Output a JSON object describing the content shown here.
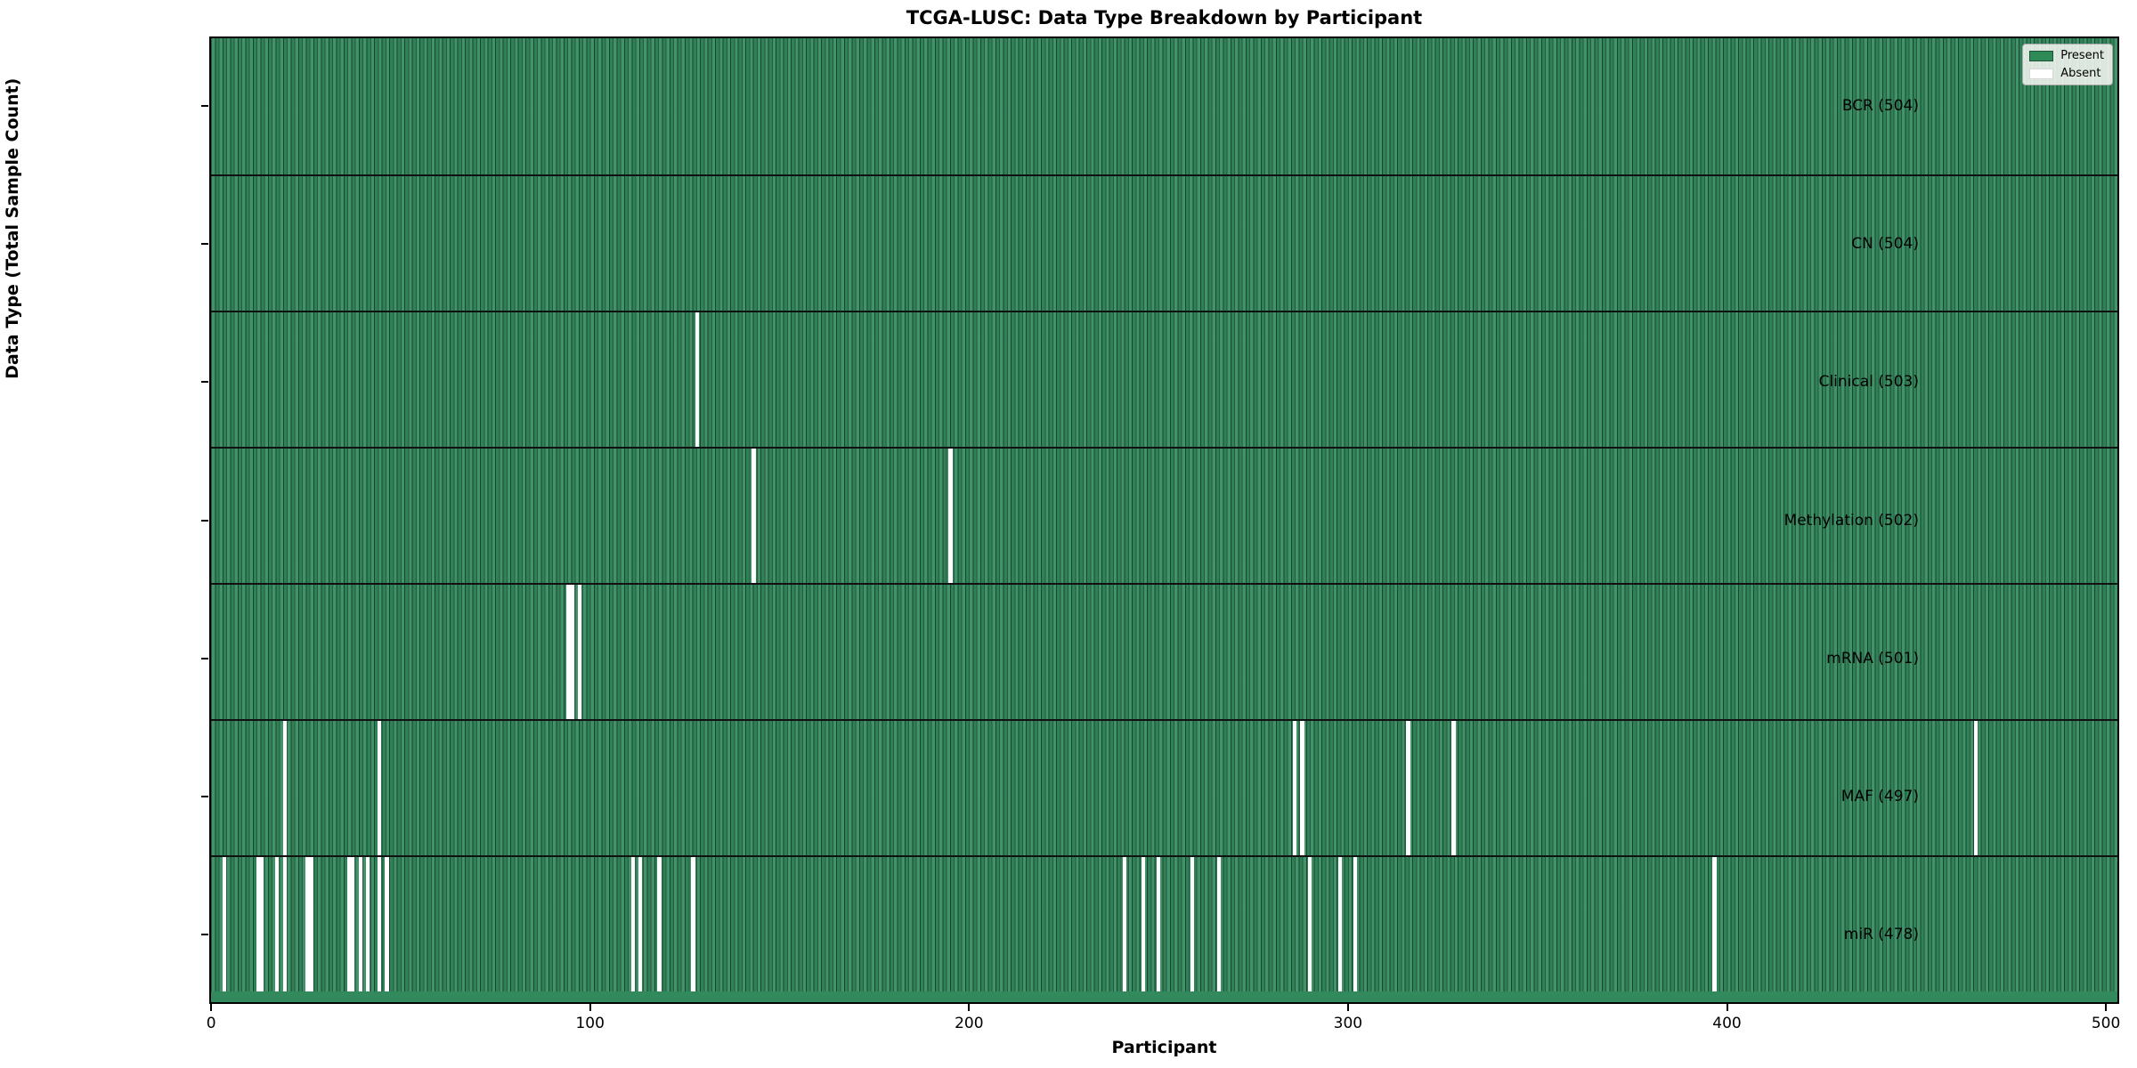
{
  "title": "TCGA-LUSC: Data Type Breakdown by Participant",
  "xlabel": "Participant",
  "ylabel": "Data Type (Total Sample Count)",
  "legend": {
    "present_label": "Present",
    "absent_label": "Absent"
  },
  "colors": {
    "present": "#2e8b57",
    "absent": "#ffffff",
    "bar_edge": "#143d26",
    "plot_border": "#000000"
  },
  "chart_data": {
    "type": "heatmap",
    "x_axis": {
      "label": "Participant",
      "ticks": [
        0,
        100,
        200,
        300,
        400,
        500
      ],
      "range": [
        0,
        504
      ]
    },
    "n_participants": 504,
    "legend_entries": [
      {
        "label": "Present",
        "color": "#2e8b57"
      },
      {
        "label": "Absent",
        "color": "#ffffff"
      }
    ],
    "rows": [
      {
        "label": "BCR (504)",
        "data_type": "BCR",
        "total": 504,
        "absent_participants": []
      },
      {
        "label": "CN (504)",
        "data_type": "CN",
        "total": 504,
        "absent_participants": []
      },
      {
        "label": "Clinical (503)",
        "data_type": "Clinical",
        "total": 503,
        "absent_participants": [
          128
        ]
      },
      {
        "label": "Methylation (502)",
        "data_type": "Methylation",
        "total": 502,
        "absent_participants": [
          143,
          195
        ]
      },
      {
        "label": "mRNA (501)",
        "data_type": "mRNA",
        "total": 501,
        "absent_participants": [
          94,
          95,
          97
        ]
      },
      {
        "label": "MAF (497)",
        "data_type": "MAF",
        "total": 497,
        "absent_participants": [
          19,
          44,
          286,
          288,
          316,
          328,
          466
        ]
      },
      {
        "label": "miR (478)",
        "data_type": "miR",
        "total": 478,
        "absent_participants": [
          3,
          12,
          13,
          17,
          19,
          25,
          26,
          36,
          37,
          39,
          41,
          44,
          46,
          111,
          113,
          118,
          127,
          241,
          246,
          250,
          259,
          266,
          290,
          298,
          302,
          397
        ]
      }
    ]
  }
}
